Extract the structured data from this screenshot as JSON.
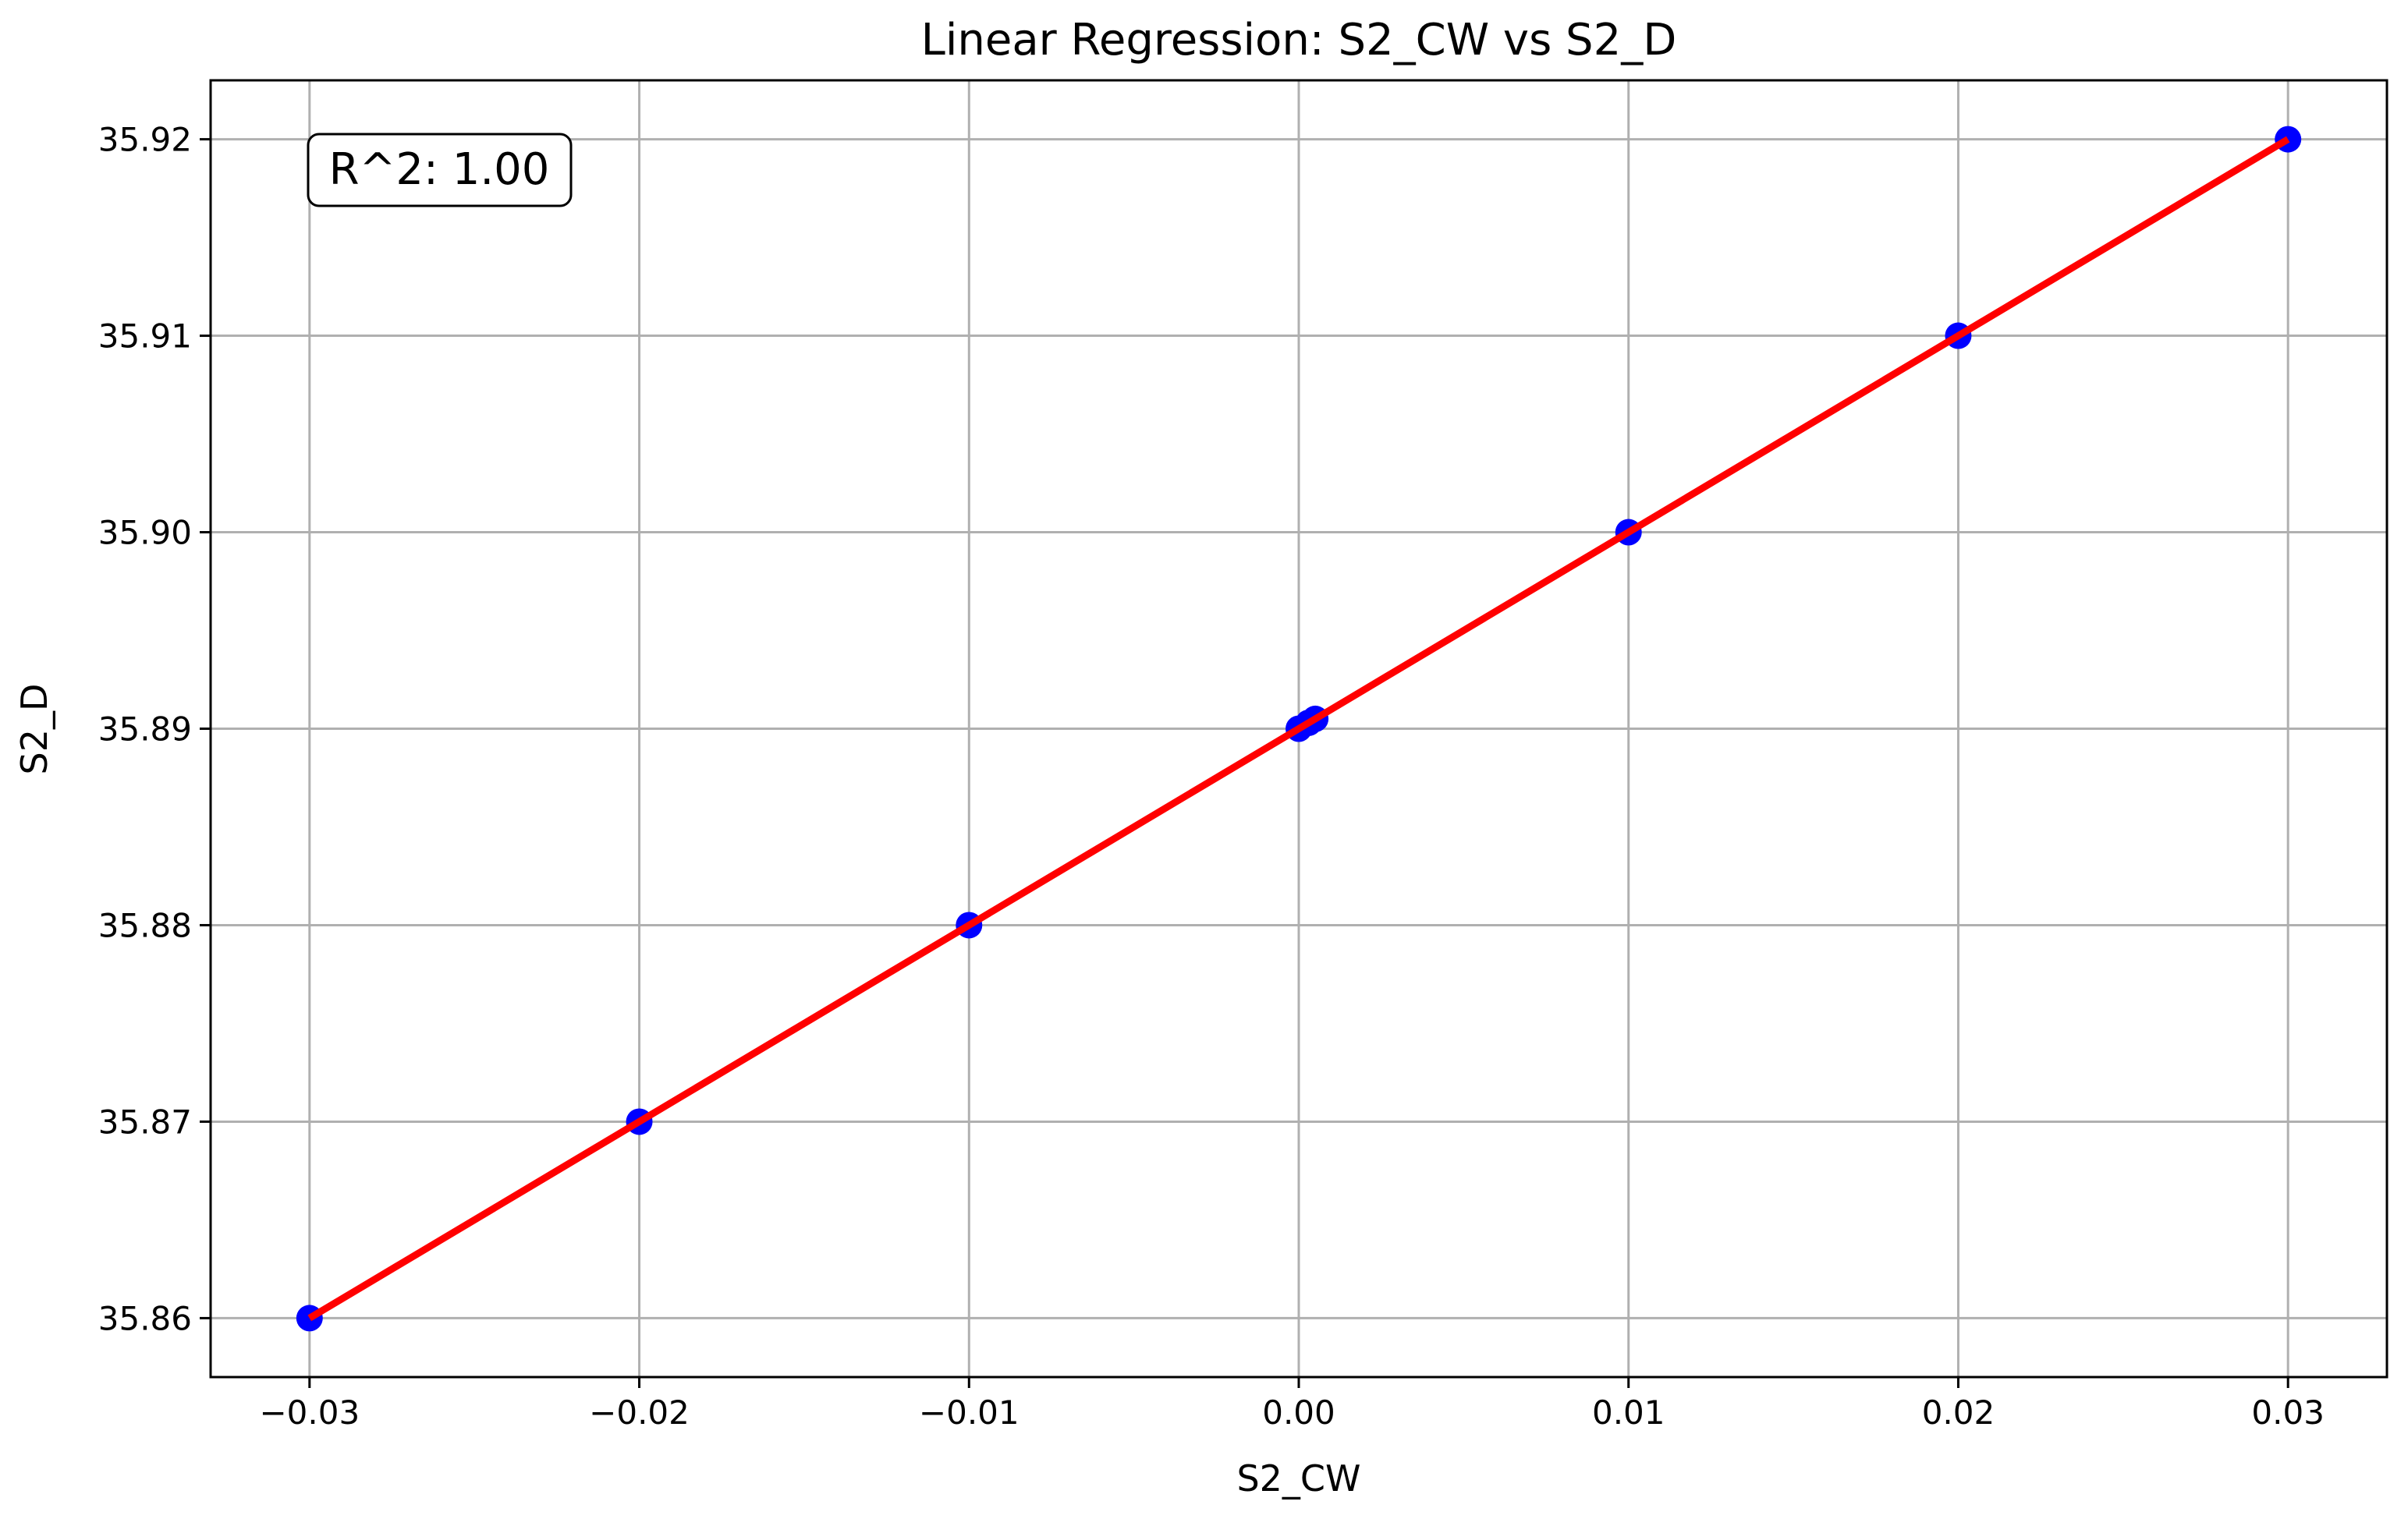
{
  "chart_data": {
    "type": "scatter",
    "title": "Linear Regression: S2_CW vs S2_D",
    "xlabel": "S2_CW",
    "ylabel": "S2_D",
    "xlim": [
      -0.033,
      0.033
    ],
    "ylim": [
      35.857,
      35.923
    ],
    "x_ticks": [
      -0.03,
      -0.02,
      -0.01,
      0.0,
      0.01,
      0.02,
      0.03
    ],
    "x_tick_labels": [
      "−0.03",
      "−0.02",
      "−0.01",
      "0.00",
      "0.01",
      "0.02",
      "0.03"
    ],
    "y_ticks": [
      35.86,
      35.87,
      35.88,
      35.89,
      35.9,
      35.91,
      35.92
    ],
    "y_tick_labels": [
      "35.86",
      "35.87",
      "35.88",
      "35.89",
      "35.90",
      "35.91",
      "35.92"
    ],
    "grid": true,
    "series": [
      {
        "type": "scatter",
        "color": "#0000ff",
        "points": [
          {
            "x": -0.03,
            "y": 35.86
          },
          {
            "x": -0.02,
            "y": 35.87
          },
          {
            "x": -0.01,
            "y": 35.88
          },
          {
            "x": 0.0,
            "y": 35.89
          },
          {
            "x": 0.0003,
            "y": 35.8903
          },
          {
            "x": 0.0005,
            "y": 35.8905
          },
          {
            "x": 0.01,
            "y": 35.9
          },
          {
            "x": 0.02,
            "y": 35.91
          },
          {
            "x": 0.03,
            "y": 35.92
          }
        ]
      },
      {
        "type": "line",
        "color": "#ff0000",
        "points": [
          {
            "x": -0.03,
            "y": 35.86
          },
          {
            "x": 0.03,
            "y": 35.92
          }
        ]
      }
    ],
    "annotation": {
      "text": "R^2: 1.00",
      "placement": "top-left"
    }
  }
}
